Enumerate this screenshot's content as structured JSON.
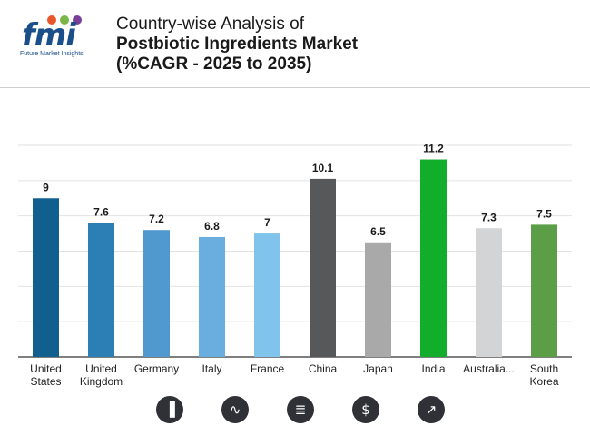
{
  "brand": {
    "logo_text": "fmi",
    "logo_subtitle": "Future Market Insights",
    "dot_colors": [
      "#e8572c",
      "#7ab648",
      "#7a3f98"
    ]
  },
  "header": {
    "title_line1": "Country-wise Analysis of",
    "title_line2": "Postbiotic Ingredients Market",
    "title_line3": "(%CAGR - 2025 to 2035)"
  },
  "chart_data": {
    "type": "bar",
    "title": "Country-wise Analysis of Postbiotic Ingredients Market (%CAGR - 2025 to 2035)",
    "xlabel": "",
    "ylabel": "",
    "ylim": [
      0,
      12
    ],
    "grid": true,
    "categories": [
      [
        "United",
        "States"
      ],
      [
        "United",
        "Kingdom"
      ],
      [
        "Germany"
      ],
      [
        "Italy"
      ],
      [
        "France"
      ],
      [
        "China"
      ],
      [
        "Japan"
      ],
      [
        "India"
      ],
      [
        "Australia..."
      ],
      [
        "South",
        "Korea"
      ]
    ],
    "values": [
      9,
      7.6,
      7.2,
      6.8,
      7,
      10.1,
      6.5,
      11.2,
      7.3,
      7.5
    ],
    "value_labels": [
      "9",
      "7.6",
      "7.2",
      "6.8",
      "7",
      "10.1",
      "6.5",
      "11.2",
      "7.3",
      "7.5"
    ],
    "colors": [
      "#105f8f",
      "#2b7fb5",
      "#4f99cf",
      "#6aaee0",
      "#80c4ec",
      "#57585a",
      "#a9a9a9",
      "#12ad2b",
      "#d3d4d6",
      "#5c9e48"
    ]
  },
  "footer_icons": [
    {
      "name": "bar-chart-icon",
      "glyph": "▐"
    },
    {
      "name": "trend-analysis-icon",
      "glyph": "∿"
    },
    {
      "name": "document-icon",
      "glyph": "≣"
    },
    {
      "name": "dollar-icon",
      "glyph": "$"
    },
    {
      "name": "line-chart-icon",
      "glyph": "↗"
    }
  ]
}
